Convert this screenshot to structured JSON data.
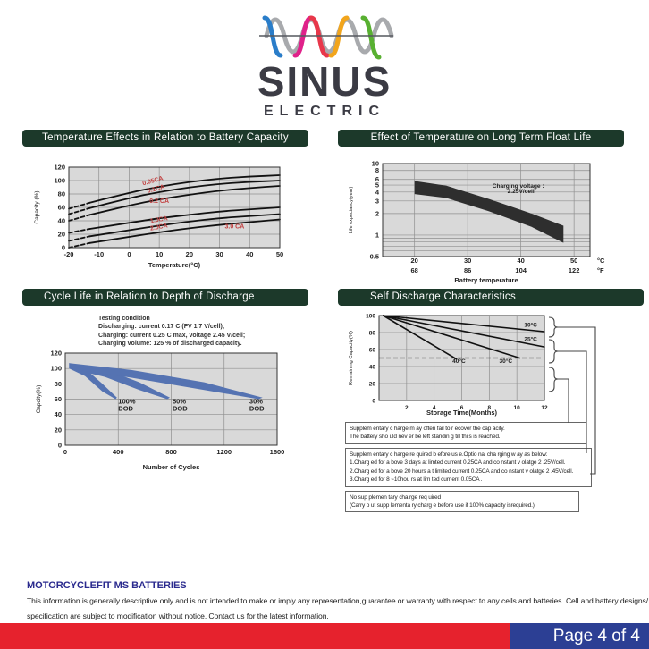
{
  "brand": {
    "name": "SINUS",
    "subtitle": "ELECTRIC",
    "wave_colors": [
      "#2a7dc9",
      "#a8aaad",
      "#e0218a",
      "#e8374a",
      "#f2a51c",
      "#58b031"
    ]
  },
  "chart_data": [
    {
      "type": "line",
      "title": "Temperature Effects in Relation to Battery Capacity",
      "xlabel": "Temperature(°C)",
      "ylabel": "Capacity (%)",
      "xlim": [
        -20,
        50
      ],
      "ylim": [
        0,
        120
      ],
      "x_ticks": [
        -20,
        -10,
        0,
        10,
        20,
        30,
        40,
        50
      ],
      "y_ticks": [
        0,
        20,
        40,
        60,
        80,
        100,
        120
      ],
      "series": [
        {
          "name": "0.05CA",
          "dash_until": -13,
          "points": [
            [
              -20,
              58
            ],
            [
              -13,
              67
            ],
            [
              0,
              82
            ],
            [
              10,
              91
            ],
            [
              20,
              98
            ],
            [
              30,
              103
            ],
            [
              40,
              106
            ],
            [
              50,
              108
            ]
          ]
        },
        {
          "name": "0.1CA",
          "dash_until": -13,
          "points": [
            [
              -20,
              50
            ],
            [
              -13,
              59
            ],
            [
              0,
              74
            ],
            [
              10,
              83
            ],
            [
              20,
              90
            ],
            [
              30,
              95
            ],
            [
              40,
              98
            ],
            [
              50,
              100
            ]
          ]
        },
        {
          "name": "0.2CA",
          "dash_until": -13,
          "points": [
            [
              -20,
              40
            ],
            [
              -13,
              49
            ],
            [
              0,
              63
            ],
            [
              10,
              72
            ],
            [
              20,
              79
            ],
            [
              30,
              85
            ],
            [
              40,
              89
            ],
            [
              50,
              92
            ]
          ]
        },
        {
          "name": "1.0CA",
          "dash_until": -13,
          "points": [
            [
              -20,
              22
            ],
            [
              -13,
              28
            ],
            [
              0,
              37
            ],
            [
              10,
              44
            ],
            [
              20,
              49
            ],
            [
              30,
              54
            ],
            [
              40,
              57
            ],
            [
              50,
              60
            ]
          ]
        },
        {
          "name": "2.0CA",
          "dash_until": -13,
          "points": [
            [
              -20,
              10
            ],
            [
              -13,
              17
            ],
            [
              0,
              26
            ],
            [
              10,
              33
            ],
            [
              20,
              39
            ],
            [
              30,
              44
            ],
            [
              40,
              47
            ],
            [
              50,
              50
            ]
          ]
        },
        {
          "name": "3.0CA",
          "dash_until": -13,
          "points": [
            [
              -20,
              0
            ],
            [
              -13,
              7
            ],
            [
              0,
              16
            ],
            [
              10,
              23
            ],
            [
              20,
              29
            ],
            [
              30,
              34
            ],
            [
              40,
              38
            ],
            [
              50,
              42
            ]
          ]
        }
      ],
      "labels": [
        {
          "text": "0.05CA",
          "x": 8,
          "y": 97,
          "rot": -15,
          "color": "#c24040",
          "size": 7
        },
        {
          "text": "0.1CA",
          "x": 9,
          "y": 85,
          "rot": -15,
          "color": "#c24040",
          "size": 7
        },
        {
          "text": "0.2 CA",
          "x": 10,
          "y": 67,
          "rot": 0,
          "color": "#c24040",
          "size": 7
        },
        {
          "text": "1.0CA",
          "x": 10,
          "y": 39,
          "rot": -10,
          "color": "#c24040",
          "size": 7
        },
        {
          "text": "2.0CA",
          "x": 10,
          "y": 28,
          "rot": -10,
          "color": "#c24040",
          "size": 7
        },
        {
          "text": "3.0 CA",
          "x": 35,
          "y": 29,
          "rot": 0,
          "color": "#c24040",
          "size": 7
        }
      ]
    },
    {
      "type": "band",
      "title": "Effect of Temperature on Long Term Float Life",
      "xlabel": "Battery temperature",
      "ylabel": "Life expectancy(year)",
      "xlim": [
        14,
        53
      ],
      "ylim": [
        0.5,
        10
      ],
      "ylog": true,
      "x_ticks": [
        20,
        30,
        40,
        50
      ],
      "x_ticks2": [
        68,
        86,
        104,
        122
      ],
      "x_units": [
        "°C",
        "°F"
      ],
      "y_ticks": [
        10,
        8,
        6,
        5,
        4,
        3,
        2,
        1,
        0.5
      ],
      "minor_y": [
        0.6,
        0.7,
        0.8,
        0.9
      ],
      "series": [
        {
          "name": "float-life-band",
          "band": true,
          "color": "#2e2e2e",
          "upper": [
            [
              20,
              5.7
            ],
            [
              26,
              4.9
            ],
            [
              34,
              3.2
            ],
            [
              42,
              2.0
            ],
            [
              48,
              1.35
            ]
          ],
          "lower": [
            [
              20,
              3.75
            ],
            [
              26,
              3.3
            ],
            [
              34,
              2.15
            ],
            [
              42,
              1.3
            ],
            [
              48,
              0.78
            ]
          ]
        }
      ],
      "annotations": [
        {
          "text": "Charging voltage :",
          "x": 39.5,
          "y": 4.6
        },
        {
          "text": "2.25V/cell",
          "x": 40,
          "y": 3.85
        }
      ]
    },
    {
      "type": "area",
      "title": "Cycle Life in Relation to Depth of Discharge",
      "xlabel": "Number of Cycles",
      "ylabel": "Capcity(%)",
      "xlim": [
        0,
        1600
      ],
      "ylim": [
        0,
        120
      ],
      "x_ticks": [
        0,
        400,
        800,
        1200,
        1600
      ],
      "y_ticks": [
        0,
        20,
        40,
        60,
        80,
        100,
        120
      ],
      "series": [
        {
          "name": "100% DOD",
          "band": true,
          "color": "#5573b2",
          "upper": [
            [
              30,
              107
            ],
            [
              150,
              100
            ],
            [
              280,
              80
            ],
            [
              390,
              62
            ]
          ],
          "lower": [
            [
              30,
              100
            ],
            [
              150,
              90
            ],
            [
              280,
              70
            ],
            [
              380,
              60
            ]
          ]
        },
        {
          "name": "50% DOD",
          "band": true,
          "color": "#5573b2",
          "upper": [
            [
              30,
              107
            ],
            [
              300,
              99
            ],
            [
              560,
              82
            ],
            [
              790,
              62
            ]
          ],
          "lower": [
            [
              30,
              100
            ],
            [
              300,
              89
            ],
            [
              560,
              72
            ],
            [
              770,
              60
            ]
          ]
        },
        {
          "name": "30% DOD",
          "band": true,
          "color": "#5573b2",
          "upper": [
            [
              30,
              107
            ],
            [
              500,
              98
            ],
            [
              1050,
              82
            ],
            [
              1490,
              62
            ]
          ],
          "lower": [
            [
              30,
              100
            ],
            [
              500,
              88
            ],
            [
              1050,
              72
            ],
            [
              1460,
              60
            ]
          ]
        }
      ],
      "labels": [
        {
          "text": "100%",
          "x": 400,
          "y": 54,
          "anchor": "start",
          "size": 7.5
        },
        {
          "text": "DOD",
          "x": 400,
          "y": 45,
          "anchor": "start",
          "size": 7.5
        },
        {
          "text": "50%",
          "x": 810,
          "y": 54,
          "anchor": "start",
          "size": 7.5
        },
        {
          "text": "DOD",
          "x": 810,
          "y": 45,
          "anchor": "start",
          "size": 7.5
        },
        {
          "text": "30%",
          "x": 1390,
          "y": 54,
          "anchor": "start",
          "size": 7.5
        },
        {
          "text": "DOD",
          "x": 1390,
          "y": 45,
          "anchor": "start",
          "size": 7.5
        }
      ]
    },
    {
      "type": "line",
      "title": "Self Discharge  Characteristics",
      "xlabel": "Storage Time(Months)",
      "ylabel": "Remaining Capacity(%)",
      "xlim": [
        0,
        12
      ],
      "ylim": [
        0,
        100
      ],
      "x_ticks": [
        2,
        4,
        6,
        8,
        10,
        12
      ],
      "y_ticks": [
        0,
        20,
        40,
        60,
        80,
        100
      ],
      "hline_dash": 50,
      "series": [
        {
          "name": "10°C",
          "points": [
            [
              0.3,
              100
            ],
            [
              12,
              81
            ]
          ]
        },
        {
          "name": "25°C",
          "points": [
            [
              0.3,
              100
            ],
            [
              12,
              63
            ]
          ]
        },
        {
          "name": "30°C",
          "points": [
            [
              0.3,
              100
            ],
            [
              10.2,
              50
            ]
          ]
        },
        {
          "name": "40°C",
          "points": [
            [
              0.3,
              100
            ],
            [
              5.6,
              49
            ]
          ]
        }
      ],
      "labels": [
        {
          "text": "10°C",
          "x": 11,
          "y": 87,
          "size": 6.5
        },
        {
          "text": "25°C",
          "x": 11,
          "y": 70,
          "size": 6.5
        },
        {
          "text": "30°C",
          "x": 9.2,
          "y": 44,
          "size": 6.5
        },
        {
          "text": "40°C",
          "x": 5.8,
          "y": 44,
          "size": 6.5
        }
      ]
    }
  ],
  "notes": {
    "testing": [
      "Testing  condition",
      "Discharging: current  0.17 C  (FV  1.7 V/cell);",
      "Charging: current  0.25 C  max,  voltage  2.45 V/cell;",
      "Charging  volume:  125 %  of discharged  capacity."
    ],
    "box1": [
      "Supplem entary c harge m ay often  fail to r ecover  the cap acity.",
      "The battery sho uld nev er be  left  standin g till thi s is reached."
    ],
    "box2": [
      "Supplem entary c harge re quired b efore us e.Optio nal cha rging w ay as below:",
      "1.Charg ed for a bove 3 days at  limted  current  0.25CA and co nstant v olatge 2 .25V/cell.",
      "2.Charg ed for a bove 20 hours a t limited  current  0.25CA and co nstant v olatge 2 .45V/cell.",
      "3.Charg ed for 8 ~10hou rs at lim ted curr ent 0.05CA ."
    ],
    "box3": [
      "No sup plemen tary cha rge req uired",
      "(Carry o ut supp lementa ry charg e before  use if 100% capacity isrequired.)"
    ]
  },
  "footer": {
    "heading": "MOTORCYCLEFIT MS BATTERIES",
    "disclaimer_line1": "This information is generally descriptive only and is not intended to make or imply any representation,guarantee or warranty with respect to any cells and batteries. Cell and battery  designs/",
    "disclaimer_line2": "specification are subject to modification without notice. Contact us for the latest information.",
    "page_label": "Page 4 of 4"
  }
}
